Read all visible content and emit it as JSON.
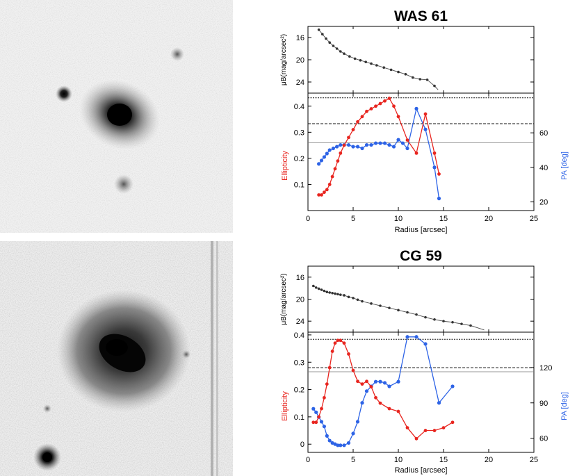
{
  "chart_data": [
    {
      "type": "line",
      "title": "WAS 61",
      "image_label": "WAS 61 galaxy image",
      "xlabel": "Radius [arcsec]",
      "xlim": [
        0,
        25
      ],
      "xticks": [
        0,
        5,
        10,
        15,
        20,
        25
      ],
      "surface_brightness": {
        "ylabel": "μB(mag/arcsec²)",
        "ylim": [
          14,
          26
        ],
        "yticks": [
          16,
          20,
          24
        ],
        "x": [
          1.2,
          1.6,
          2.0,
          2.4,
          2.8,
          3.2,
          3.6,
          4.0,
          4.6,
          5.2,
          5.8,
          6.4,
          7.0,
          7.6,
          8.4,
          9.2,
          10.0,
          10.8,
          11.6,
          12.4,
          13.2,
          14.0,
          14.4
        ],
        "y": [
          14.6,
          15.4,
          16.2,
          16.9,
          17.5,
          18.0,
          18.5,
          18.9,
          19.4,
          19.8,
          20.1,
          20.4,
          20.7,
          21.0,
          21.4,
          21.8,
          22.2,
          22.6,
          23.2,
          23.5,
          23.6,
          24.7,
          25.4
        ]
      },
      "ellipticity": {
        "ylabel": "Ellipticity",
        "color": "#e8251f",
        "ylim": [
          0,
          0.45
        ],
        "yticks": [
          0.1,
          0.2,
          0.3,
          0.4
        ],
        "x": [
          1.2,
          1.5,
          1.8,
          2.1,
          2.4,
          2.7,
          3.0,
          3.3,
          3.6,
          4.0,
          4.5,
          5.0,
          5.5,
          6.0,
          6.5,
          7.0,
          7.5,
          8.0,
          8.5,
          9.0,
          9.5,
          10.0,
          11.0,
          12.0,
          13.0,
          14.0,
          14.5
        ],
        "y": [
          0.06,
          0.06,
          0.07,
          0.08,
          0.1,
          0.13,
          0.16,
          0.19,
          0.22,
          0.25,
          0.28,
          0.31,
          0.34,
          0.36,
          0.38,
          0.39,
          0.4,
          0.41,
          0.42,
          0.43,
          0.4,
          0.36,
          0.27,
          0.22,
          0.37,
          0.22,
          0.14
        ]
      },
      "position_angle": {
        "ylabel": "PA [deg]",
        "color": "#2d63e6",
        "ylim": [
          15,
          83
        ],
        "yticks": [
          20,
          40,
          60
        ],
        "x": [
          1.2,
          1.5,
          1.8,
          2.1,
          2.4,
          2.8,
          3.2,
          3.6,
          4.0,
          4.5,
          5.0,
          5.5,
          6.0,
          6.5,
          7.0,
          7.5,
          8.0,
          8.5,
          9.0,
          9.5,
          10.0,
          10.5,
          11.0,
          12.0,
          13.0,
          14.0,
          14.5
        ],
        "y": [
          42,
          44,
          46,
          48,
          50,
          51,
          52,
          53,
          53,
          53,
          52,
          52,
          51,
          53,
          53,
          54,
          54,
          54,
          53,
          52,
          56,
          54,
          51,
          74,
          62,
          40,
          22
        ]
      },
      "ref_lines": [
        0.432,
        0.333,
        0.26
      ]
    },
    {
      "type": "line",
      "title": "CG 59",
      "image_label": "CG 59 galaxy image",
      "xlabel": "Radius [arcsec]",
      "xlim": [
        0,
        25
      ],
      "xticks": [
        0,
        5,
        10,
        15,
        20,
        25
      ],
      "surface_brightness": {
        "ylabel": "μB(mag/arcsec²)",
        "ylim": [
          14,
          26
        ],
        "yticks": [
          16,
          20,
          24
        ],
        "x": [
          0.6,
          0.9,
          1.2,
          1.5,
          1.8,
          2.1,
          2.4,
          2.7,
          3.0,
          3.3,
          3.6,
          4.0,
          4.5,
          5.0,
          5.5,
          6.0,
          7.0,
          8.0,
          9.0,
          10.0,
          11.0,
          12.0,
          13.0,
          14.0,
          15.0,
          16.0,
          17.0,
          18.0,
          19.5
        ],
        "y": [
          17.6,
          17.9,
          18.1,
          18.3,
          18.5,
          18.7,
          18.8,
          18.9,
          19.0,
          19.1,
          19.2,
          19.3,
          19.6,
          19.8,
          20.1,
          20.4,
          20.8,
          21.2,
          21.6,
          22.0,
          22.4,
          22.8,
          23.3,
          23.7,
          24.0,
          24.2,
          24.5,
          24.8,
          25.6
        ]
      },
      "ellipticity": {
        "ylabel": "Ellipticity",
        "color": "#e8251f",
        "ylim": [
          -0.03,
          0.41
        ],
        "yticks": [
          0,
          0.1,
          0.2,
          0.3,
          0.4
        ],
        "x": [
          0.6,
          0.9,
          1.2,
          1.5,
          1.8,
          2.1,
          2.4,
          2.7,
          3.0,
          3.3,
          3.6,
          4.0,
          4.5,
          5.0,
          5.5,
          6.0,
          6.5,
          7.0,
          7.5,
          8.0,
          9.0,
          10.0,
          11.0,
          12.0,
          13.0,
          14.0,
          15.0,
          16.0
        ],
        "y": [
          0.08,
          0.08,
          0.1,
          0.13,
          0.17,
          0.22,
          0.28,
          0.34,
          0.37,
          0.38,
          0.38,
          0.37,
          0.33,
          0.27,
          0.23,
          0.22,
          0.23,
          0.21,
          0.17,
          0.15,
          0.13,
          0.12,
          0.06,
          0.02,
          0.05,
          0.05,
          0.06,
          0.08
        ]
      },
      "position_angle": {
        "ylabel": "PA [deg]",
        "color": "#2d63e6",
        "ylim": [
          48,
          150
        ],
        "yticks": [
          60,
          90,
          120
        ],
        "x": [
          0.6,
          0.9,
          1.2,
          1.5,
          1.8,
          2.1,
          2.4,
          2.7,
          3.0,
          3.3,
          3.6,
          4.0,
          4.5,
          5.0,
          5.5,
          6.0,
          6.5,
          7.0,
          7.5,
          8.0,
          8.5,
          9.0,
          10.0,
          11.0,
          12.0,
          13.0,
          14.5,
          16.0
        ],
        "y": [
          85,
          82,
          78,
          74,
          70,
          62,
          58,
          56,
          55,
          54,
          54,
          54,
          56,
          64,
          74,
          90,
          100,
          104,
          108,
          108,
          107,
          104,
          108,
          146,
          146,
          140,
          90,
          104
        ]
      },
      "ref_lines": [
        0.384,
        0.28,
        0.265
      ]
    }
  ]
}
